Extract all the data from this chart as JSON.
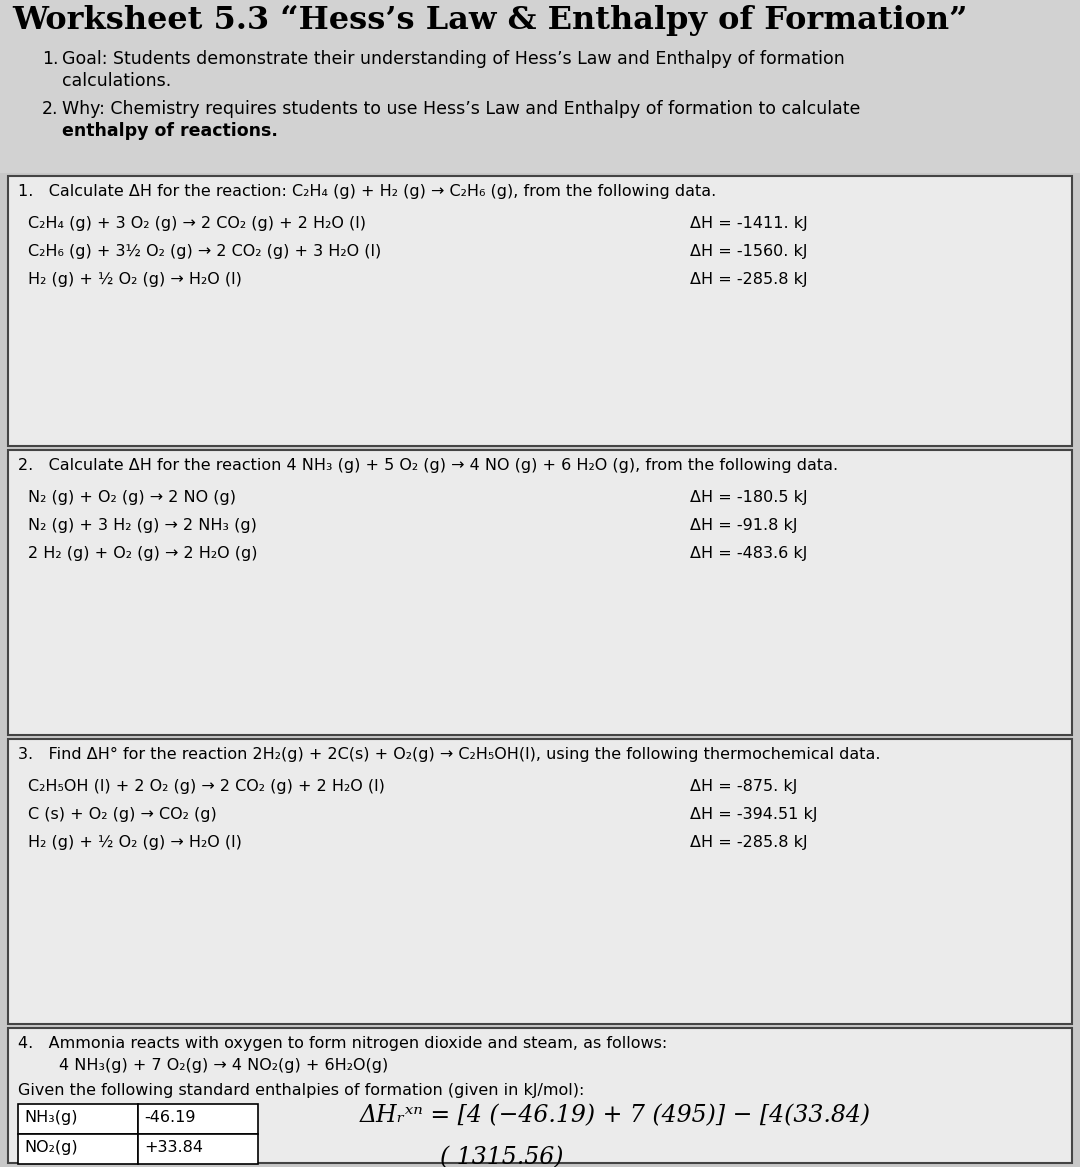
{
  "bg_color": "#c8c8c8",
  "title_area_color": "#d0d0d0",
  "box_color": "#e4e4e4",
  "title": "Worksheet 5.3 “Hess’s Law & Enthalpy of Formation”",
  "intro_1_num": "1.",
  "intro_1_text": "Goal: Students demonstrate their understanding of Hess’s Law and Enthalpy of formation\ncalculations.",
  "intro_2_num": "2.",
  "intro_2_text": "Why: Chemistry requires students to use Hess’s Law and Enthalpy of formation to calculate\nenthalpy of reactions.",
  "q1_header": "1.   Calculate ΔH for the reaction: C₂H₄ (g) + H₂ (g) → C₂H₆ (g), from the following data.",
  "q1_reactions": [
    "C₂H₄ (g) + 3 O₂ (g) → 2 CO₂ (g) + 2 H₂O (l)",
    "C₂H₆ (g) + 3½ O₂ (g) → 2 CO₂ (g) + 3 H₂O (l)",
    "H₂ (g) + ½ O₂ (g) → H₂O (l)"
  ],
  "q1_dh": [
    "ΔH = -1411. kJ",
    "ΔH = -1560. kJ",
    "ΔH = -285.8 kJ"
  ],
  "q2_header": "2.   Calculate ΔH for the reaction 4 NH₃ (g) + 5 O₂ (g) → 4 NO (g) + 6 H₂O (g), from the following data.",
  "q2_reactions": [
    "N₂ (g) + O₂ (g) → 2 NO (g)",
    "N₂ (g) + 3 H₂ (g) → 2 NH₃ (g)",
    "2 H₂ (g) + O₂ (g) → 2 H₂O (g)"
  ],
  "q2_dh": [
    "ΔH = -180.5 kJ",
    "ΔH = -91.8 kJ",
    "ΔH = -483.6 kJ"
  ],
  "q3_header": "3.   Find ΔH° for the reaction 2H₂(g) + 2C(s) + O₂(g) → C₂H₅OH(l), using the following thermochemical data.",
  "q3_reactions": [
    "C₂H₅OH (l) + 2 O₂ (g) → 2 CO₂ (g) + 2 H₂O (l)",
    "C (s) + O₂ (g) → CO₂ (g)",
    "H₂ (g) + ½ O₂ (g) → H₂O (l)"
  ],
  "q3_dh": [
    "ΔH = -875. kJ",
    "ΔH = -394.51 kJ",
    "ΔH = -285.8 kJ"
  ],
  "q4_header": "4.   Ammonia reacts with oxygen to form nitrogen dioxide and steam, as follows:",
  "q4_reaction": "        4 NH₃(g) + 7 O₂(g) → 4 NO₂(g) + 6H₂O(g)",
  "q4_given": "Given the following standard enthalpies of formation (given in kJ/mol):",
  "q4_table": [
    [
      "NH₃(g)",
      "-46.19"
    ],
    [
      "NO₂(g)",
      "+33.84"
    ]
  ],
  "q4_hw1": "ΔHrxn = [4 (-46.19) + 7 (495)] − [4(33.84)",
  "q4_hw2": "                                  ( 1315.56)"
}
